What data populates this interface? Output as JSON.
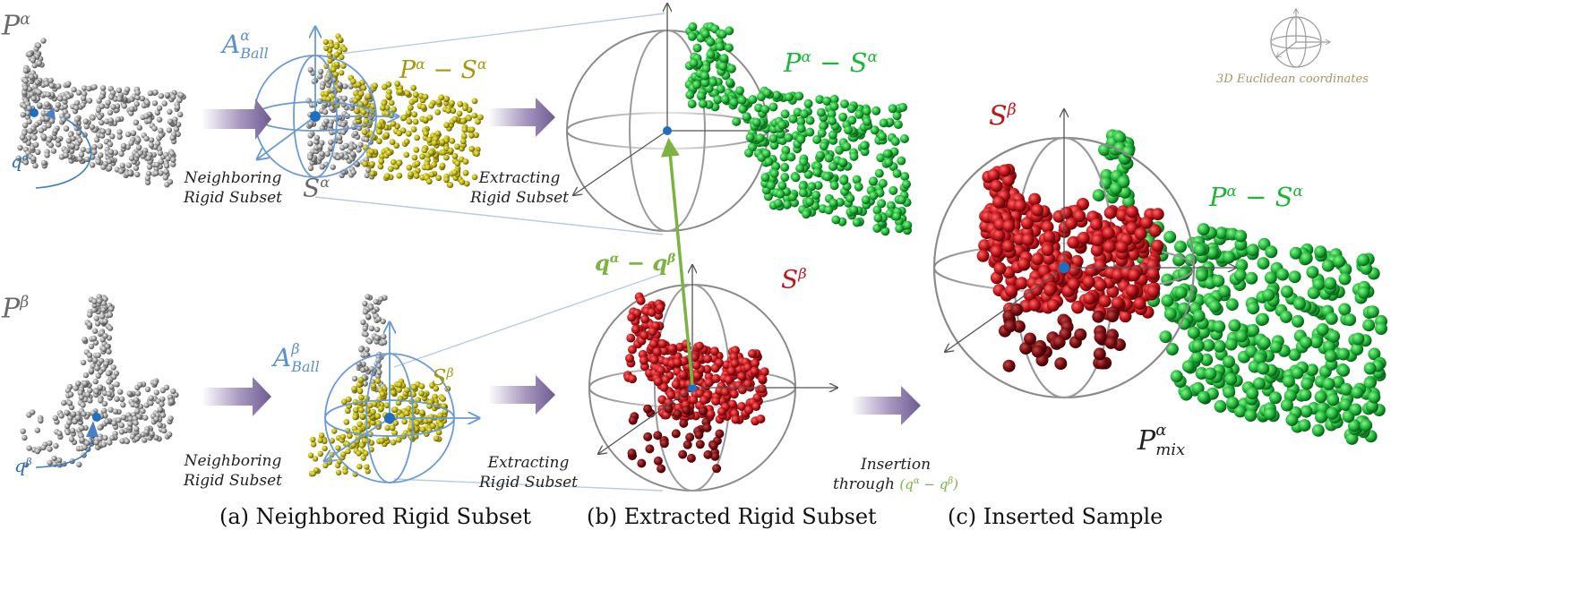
{
  "labels": {
    "p_alpha": {
      "base": "P",
      "sup": "α"
    },
    "p_beta": {
      "base": "P",
      "sup": "β"
    },
    "a_ball_alpha": {
      "base": "A",
      "sup": "α",
      "sub": "Ball"
    },
    "a_ball_beta": {
      "base": "A",
      "sup": "β",
      "sub": "Ball"
    },
    "p_minus_s_top": "P^α − S^α",
    "p_minus_s_top_base1": "P",
    "p_minus_s_top_sup1": "α",
    "p_minus_s_top_op": " − ",
    "p_minus_s_top_base2": "S",
    "p_minus_s_top_sup2": "α",
    "s_alpha": {
      "base": "S",
      "sup": "α"
    },
    "s_beta_small": {
      "base": "S",
      "sup": "β"
    },
    "s_beta_mid": {
      "base": "S",
      "sup": "β"
    },
    "s_beta_right": {
      "base": "S",
      "sup": "β"
    },
    "q_alpha": {
      "base": "q",
      "sup": "α"
    },
    "q_beta": {
      "base": "q",
      "sup": "β"
    },
    "q_diff": {
      "b1": "q",
      "s1": "α",
      "op": " − ",
      "b2": "q",
      "s2": "β"
    },
    "p_mix": {
      "base": "P",
      "sup": "α",
      "sub": "mix"
    }
  },
  "steps": {
    "neighboring_top": [
      "Neighboring",
      "Rigid Subset"
    ],
    "extracting_top": [
      "Extracting",
      "Rigid Subset"
    ],
    "neighboring_bottom": [
      "Neighboring",
      "Rigid Subset"
    ],
    "extracting_bottom": [
      "Extracting",
      "Rigid Subset"
    ],
    "insertion": {
      "line1": "Insertion",
      "line2_prefix": "through",
      "line2_expr": "(q^α − q^β)"
    }
  },
  "legend": {
    "text": "3D Euclidean coordinates"
  },
  "captions": {
    "a": "(a) Neighbored Rigid Subset",
    "b": "(b) Extracted Rigid Subset",
    "c": "(c) Inserted Sample"
  },
  "colors": {
    "grey_points": "#9a9a9a",
    "subset_olive": "#c8c018",
    "remainder_green": "#24c43c",
    "inserted_red": "#c2141a",
    "ball_blue": "#6b9ad6",
    "arrow_purple": "#7e6aa0",
    "vector_green": "#7cb342"
  }
}
